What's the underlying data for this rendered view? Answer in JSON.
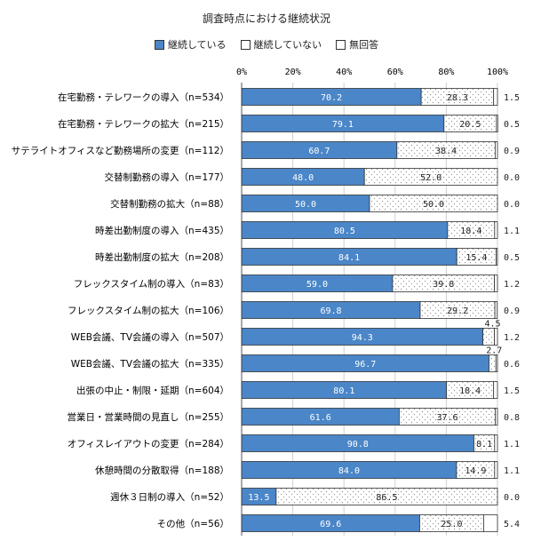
{
  "chart_data": {
    "type": "bar",
    "orientation": "horizontal-stacked-percent",
    "title": "調査時点における継続状況",
    "xlim": [
      0,
      100
    ],
    "xticks": [
      "0%",
      "20%",
      "40%",
      "60%",
      "80%",
      "100%"
    ],
    "legend_position": "top",
    "categories": [
      "在宅勤務・テレワークの導入（n=534）",
      "在宅勤務・テレワークの拡大（n=215）",
      "サテライトオフィスなど勤務場所の変更（n=112）",
      "交替制勤務の導入（n=177）",
      "交替制勤務の拡大（n=88）",
      "時差出勤制度の導入（n=435）",
      "時差出勤制度の拡大（n=208）",
      "フレックスタイム制の導入（n=83）",
      "フレックスタイム制の拡大（n=106）",
      "WEB会議、TV会議の導入（n=507）",
      "WEB会議、TV会議の拡大（n=335）",
      "出張の中止・制限・延期（n=604）",
      "営業日・営業時間の見直し（n=255）",
      "オフィスレイアウトの変更（n=284）",
      "休憩時間の分散取得（n=188）",
      "週休３日制の導入（n=52）",
      "その他（n=56）"
    ],
    "series": [
      {
        "name": "継続している",
        "color": "#4a86c8",
        "pattern": "solid",
        "values": [
          70.2,
          79.1,
          60.7,
          48.0,
          50.0,
          80.5,
          84.1,
          59.0,
          69.8,
          94.3,
          96.7,
          80.1,
          61.6,
          90.8,
          84.0,
          13.5,
          69.6
        ]
      },
      {
        "name": "継続していない",
        "color": "#ffffff",
        "pattern": "dotted",
        "values": [
          28.3,
          20.5,
          38.4,
          52.0,
          50.0,
          18.4,
          15.4,
          39.8,
          29.2,
          4.5,
          2.7,
          18.4,
          37.6,
          8.1,
          14.9,
          86.5,
          25.0
        ]
      },
      {
        "name": "無回答",
        "color": "#ffffff",
        "pattern": "solid",
        "values": [
          1.5,
          0.5,
          0.9,
          0.0,
          0.0,
          1.1,
          0.5,
          1.2,
          0.9,
          1.2,
          0.6,
          1.5,
          0.8,
          1.1,
          1.1,
          0.0,
          5.4
        ]
      }
    ]
  }
}
